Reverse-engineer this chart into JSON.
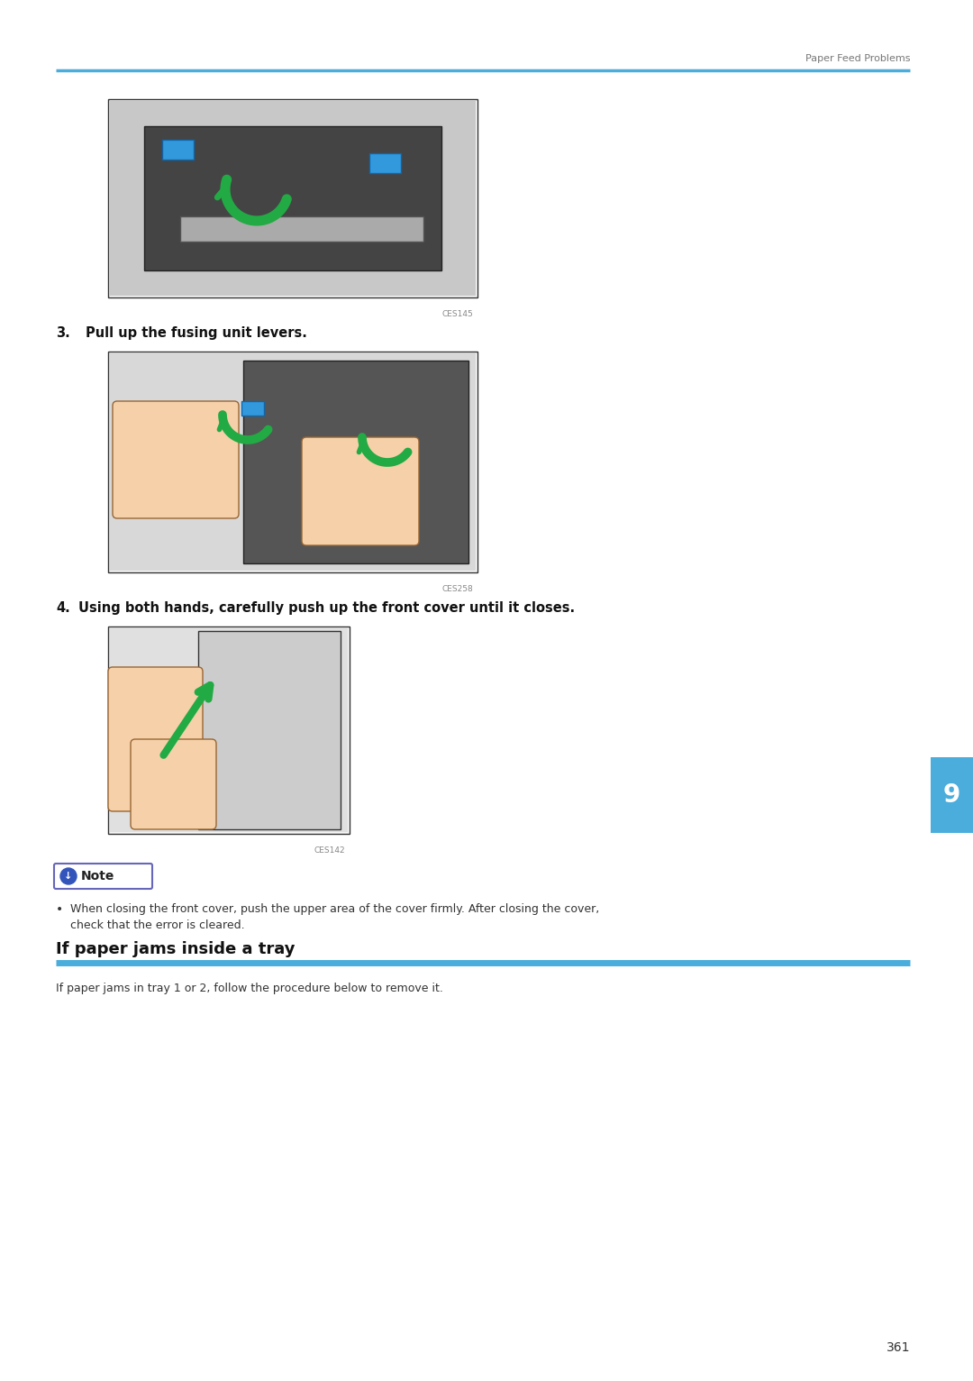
{
  "page_bg": "#ffffff",
  "header_line_color": "#4aaddc",
  "header_text": "Paper Feed Problems",
  "header_text_color": "#777777",
  "header_text_size": 8,
  "image1_caption": "CES145",
  "image2_caption": "CES258",
  "image3_caption": "CES142",
  "step3_label": "3.",
  "step3_text": "Pull up the fusing unit levers.",
  "step4_label": "4.",
  "step4_text": "Using both hands, carefully push up the front cover until it closes.",
  "step_text_size": 10.5,
  "note_text": "Note",
  "note_line1": "When closing the front cover, push the upper area of the cover firmly. After closing the cover,",
  "note_line2": "check that the error is cleared.",
  "note_text_size": 9,
  "section_title": "If paper jams inside a tray",
  "section_title_size": 13,
  "section_line_color": "#4aaddc",
  "section_body": "If paper jams in tray 1 or 2, follow the procedure below to remove it.",
  "section_body_size": 9,
  "page_number": "361",
  "page_number_size": 10,
  "tab_color": "#4aaddc",
  "tab_text": "9",
  "tab_text_color": "#ffffff",
  "caption_text_size": 6.5,
  "caption_text_color": "#888888",
  "img_border_color": "#333333",
  "img_fill_color": "#f5f5f5"
}
